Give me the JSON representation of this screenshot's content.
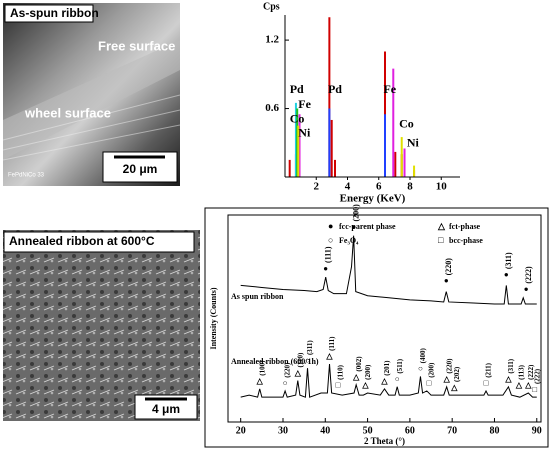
{
  "panels": [
    {
      "label": "As-spun ribbon",
      "annotations": [
        "Free surface",
        "wheel surface"
      ],
      "scale_bar": "20 μm",
      "sample_id": "FePdNiCo 33"
    },
    {
      "label": "Annealed ribbon at 600°C",
      "scale_bar": "4 μm"
    }
  ],
  "chart_data": [
    {
      "type": "stem",
      "ylabel": "Cps",
      "xlabel": "Energy (KeV)",
      "xlim": [
        0,
        11.2
      ],
      "ylim": [
        0,
        1.42
      ],
      "xticks": [
        2,
        4,
        6,
        8,
        10
      ],
      "yticks": [
        0.6,
        1.2
      ],
      "series": [
        {
          "color": "#d00000",
          "x": [
            0.3,
            0.7,
            0.85,
            2.84,
            2.99,
            3.2,
            6.4,
            7.06,
            7.47,
            8.26
          ],
          "values": [
            0.15,
            0.2,
            0.1,
            1.4,
            0.5,
            0.15,
            1.1,
            0.22,
            0.2,
            0.06
          ]
        },
        {
          "color": "#e020e0",
          "x": [
            0.93,
            6.93,
            7.65
          ],
          "values": [
            0.55,
            0.95,
            0.25
          ]
        },
        {
          "color": "#20d0e0",
          "x": [
            0.7
          ],
          "values": [
            0.65
          ]
        },
        {
          "color": "#20c020",
          "x": [
            0.78
          ],
          "values": [
            0.6
          ]
        },
        {
          "color": "#e0e000",
          "x": [
            0.85,
            7.47,
            8.26
          ],
          "values": [
            0.45,
            0.35,
            0.1
          ]
        },
        {
          "color": "#2040ff",
          "x": [
            2.84,
            6.4
          ],
          "values": [
            0.6,
            0.55
          ]
        }
      ],
      "annotations": [
        {
          "text": "Pd",
          "x": 0.3,
          "y": 0.76
        },
        {
          "text": "Fe",
          "x": 0.85,
          "y": 0.63
        },
        {
          "text": "Co",
          "x": 0.3,
          "y": 0.5
        },
        {
          "text": "Ni",
          "x": 0.85,
          "y": 0.38
        },
        {
          "text": "Pd",
          "x": 2.75,
          "y": 0.76
        },
        {
          "text": "Fe",
          "x": 6.3,
          "y": 0.76
        },
        {
          "text": "Co",
          "x": 7.3,
          "y": 0.46
        },
        {
          "text": "Ni",
          "x": 7.8,
          "y": 0.29
        }
      ]
    },
    {
      "type": "line",
      "ylabel": "Intensity (Counts)",
      "xlabel": "2 Theta (°)",
      "xlim": [
        17,
        91
      ],
      "ylim": [
        0,
        100
      ],
      "xticks": [
        20,
        30,
        40,
        50,
        60,
        70,
        80,
        90
      ],
      "series": [
        {
          "name": "As spun ribbon",
          "color": "#000000",
          "x": [
            20,
            25,
            30,
            35,
            38,
            39.5,
            40.1,
            40.7,
            42,
            45,
            46.2,
            46.7,
            47.2,
            50,
            55,
            60,
            65,
            68,
            68.6,
            69.2,
            75,
            80,
            82.3,
            82.8,
            83.3,
            86.3,
            86.8,
            87.3,
            90
          ],
          "values": [
            66,
            65,
            64,
            63.5,
            63,
            64,
            70,
            63.5,
            62,
            62,
            75,
            90,
            63,
            61,
            60,
            59,
            58.5,
            58,
            63,
            58,
            57.5,
            57,
            57,
            66,
            57,
            57,
            60,
            57,
            57
          ]
        },
        {
          "name": "Annealed ribbon   (600/1h)",
          "color": "#000000",
          "x": [
            20,
            22,
            24,
            24.5,
            25,
            28,
            30,
            30.5,
            31,
            33,
            33.5,
            34,
            35.3,
            35.8,
            36.3,
            39,
            40.5,
            41,
            41.5,
            44,
            46.8,
            47.3,
            48,
            49,
            50,
            53,
            54,
            55,
            56.5,
            57,
            57.5,
            60,
            62,
            62.5,
            63,
            64,
            65,
            68,
            68.7,
            69.3,
            72,
            77.5,
            78,
            78.5,
            82,
            83.3,
            84,
            86,
            88,
            89,
            90
          ],
          "values": [
            12,
            13,
            12,
            16,
            12,
            12,
            12,
            15,
            12,
            13,
            20,
            13,
            12,
            26,
            12,
            14,
            14,
            28,
            14,
            13,
            14,
            18,
            13,
            13,
            14,
            13,
            16,
            13,
            13,
            17,
            13,
            13,
            14,
            22,
            14,
            15,
            13,
            13,
            17,
            13,
            13,
            13,
            15,
            13,
            13,
            17,
            13,
            12,
            14,
            12,
            12
          ]
        }
      ],
      "phase_legend": [
        {
          "marker": "●",
          "text": "fcc-parent phase"
        },
        {
          "marker": "△",
          "text": "fct-phase"
        },
        {
          "marker": "○",
          "text": "Fe₃O₄"
        },
        {
          "marker": "□",
          "text": "bcc-phase"
        }
      ],
      "peak_labels_top": [
        {
          "marker": "●",
          "text": "(111)",
          "x": 40.1,
          "y": 72
        },
        {
          "marker": "●",
          "text": "(200)",
          "x": 46.7,
          "y": 92
        },
        {
          "marker": "●",
          "text": "(220)",
          "x": 68.6,
          "y": 66
        },
        {
          "marker": "●",
          "text": "(311)",
          "x": 82.8,
          "y": 69
        },
        {
          "marker": "●",
          "text": "(222)",
          "x": 87.5,
          "y": 62
        }
      ],
      "peak_labels_bottom": [
        {
          "marker": "△",
          "text": "(100)",
          "x": 24.5,
          "y": 18
        },
        {
          "marker": "○",
          "text": "(220)",
          "x": 30.5,
          "y": 17
        },
        {
          "marker": "△",
          "text": "(110)",
          "x": 33.5,
          "y": 22
        },
        {
          "marker": "○",
          "text": "(311)",
          "x": 35.8,
          "y": 28
        },
        {
          "marker": "△",
          "text": "(111)",
          "x": 41,
          "y": 30
        },
        {
          "marker": "□",
          "text": "(110)",
          "x": 43,
          "y": 16
        },
        {
          "marker": "△",
          "text": "(002)",
          "x": 47.3,
          "y": 20
        },
        {
          "marker": "△",
          "text": "(200)",
          "x": 49.5,
          "y": 16
        },
        {
          "marker": "△",
          "text": "(201)",
          "x": 54,
          "y": 18
        },
        {
          "marker": "○",
          "text": "(511)",
          "x": 57,
          "y": 19
        },
        {
          "marker": "○",
          "text": "(400)",
          "x": 62.5,
          "y": 24
        },
        {
          "marker": "□",
          "text": "(200)",
          "x": 64.5,
          "y": 17
        },
        {
          "marker": "△",
          "text": "(220)",
          "x": 68.7,
          "y": 19
        },
        {
          "marker": "△",
          "text": "(202)",
          "x": 70.5,
          "y": 15
        },
        {
          "marker": "□",
          "text": "(211)",
          "x": 78,
          "y": 17
        },
        {
          "marker": "△",
          "text": "(311)",
          "x": 83.3,
          "y": 19
        },
        {
          "marker": "△",
          "text": "(113)",
          "x": 85.8,
          "y": 16
        },
        {
          "marker": "△",
          "text": "(222)",
          "x": 88,
          "y": 16
        },
        {
          "marker": "□",
          "text": "(222)",
          "x": 89.5,
          "y": 14
        }
      ]
    }
  ]
}
